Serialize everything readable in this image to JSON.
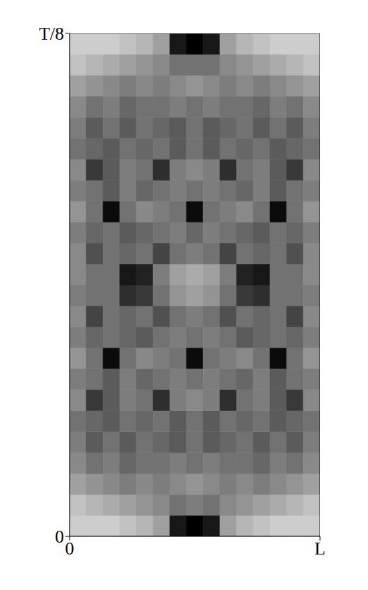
{
  "chart_data": {
    "type": "heatmap",
    "xlim": [
      0,
      1
    ],
    "xticks": [
      {
        "value": 0,
        "label": "0"
      },
      {
        "value": 1,
        "label": "L"
      }
    ],
    "ylim": [
      0,
      0.125
    ],
    "yticks": [
      {
        "value": 0,
        "label": "0"
      },
      {
        "value": 0.125,
        "label": "T/8"
      }
    ],
    "zlim": [
      0,
      1
    ],
    "x": [
      0.033,
      0.1,
      0.167,
      0.233,
      0.3,
      0.367,
      0.433,
      0.5,
      0.567,
      0.633,
      0.7,
      0.767,
      0.833,
      0.9,
      0.967
    ],
    "y": [
      0.0026,
      0.0078,
      0.013,
      0.0182,
      0.0234,
      0.0286,
      0.0339,
      0.0391,
      0.0443,
      0.0495,
      0.0547,
      0.0599,
      0.0651,
      0.0703,
      0.0755,
      0.0807,
      0.0859,
      0.0911,
      0.0964,
      0.1016,
      0.1068,
      0.112,
      0.1172,
      0.1224
    ],
    "values": [
      [
        0.1,
        0.1,
        0.1,
        0.15,
        0.2,
        0.3,
        0.9,
        1,
        0.9,
        0.3,
        0.2,
        0.15,
        0.1,
        0.1,
        0.1
      ],
      [
        0.15,
        0.2,
        0.25,
        0.3,
        0.35,
        0.4,
        0.5,
        0.45,
        0.5,
        0.4,
        0.35,
        0.3,
        0.25,
        0.2,
        0.15
      ],
      [
        0.3,
        0.35,
        0.4,
        0.45,
        0.4,
        0.45,
        0.4,
        0.35,
        0.4,
        0.45,
        0.4,
        0.45,
        0.4,
        0.35,
        0.3
      ],
      [
        0.4,
        0.5,
        0.45,
        0.55,
        0.5,
        0.5,
        0.45,
        0.5,
        0.45,
        0.5,
        0.5,
        0.55,
        0.45,
        0.5,
        0.4
      ],
      [
        0.45,
        0.6,
        0.5,
        0.6,
        0.5,
        0.55,
        0.6,
        0.5,
        0.6,
        0.55,
        0.5,
        0.6,
        0.5,
        0.6,
        0.45
      ],
      [
        0.5,
        0.55,
        0.6,
        0.5,
        0.55,
        0.5,
        0.6,
        0.5,
        0.6,
        0.5,
        0.55,
        0.5,
        0.6,
        0.55,
        0.5
      ],
      [
        0.4,
        0.75,
        0.6,
        0.45,
        0.5,
        0.8,
        0.45,
        0.4,
        0.45,
        0.8,
        0.5,
        0.45,
        0.6,
        0.75,
        0.4
      ],
      [
        0.45,
        0.5,
        0.6,
        0.45,
        0.55,
        0.5,
        0.45,
        0.5,
        0.45,
        0.5,
        0.55,
        0.45,
        0.6,
        0.5,
        0.45
      ],
      [
        0.35,
        0.5,
        0.95,
        0.5,
        0.4,
        0.45,
        0.5,
        0.95,
        0.5,
        0.45,
        0.4,
        0.5,
        0.95,
        0.5,
        0.35
      ],
      [
        0.45,
        0.55,
        0.5,
        0.55,
        0.6,
        0.5,
        0.45,
        0.5,
        0.45,
        0.5,
        0.6,
        0.55,
        0.5,
        0.55,
        0.45
      ],
      [
        0.4,
        0.7,
        0.5,
        0.55,
        0.5,
        0.65,
        0.5,
        0.45,
        0.5,
        0.65,
        0.5,
        0.55,
        0.5,
        0.7,
        0.4
      ],
      [
        0.45,
        0.5,
        0.5,
        0.8,
        0.75,
        0.5,
        0.35,
        0.3,
        0.35,
        0.5,
        0.75,
        0.8,
        0.5,
        0.5,
        0.45
      ],
      [
        0.4,
        0.5,
        0.5,
        0.9,
        0.85,
        0.45,
        0.3,
        0.25,
        0.3,
        0.45,
        0.85,
        0.9,
        0.5,
        0.5,
        0.4
      ],
      [
        0.4,
        0.65,
        0.5,
        0.55,
        0.5,
        0.7,
        0.5,
        0.45,
        0.5,
        0.7,
        0.5,
        0.55,
        0.5,
        0.65,
        0.4
      ],
      [
        0.45,
        0.55,
        0.5,
        0.6,
        0.55,
        0.5,
        0.45,
        0.55,
        0.45,
        0.5,
        0.55,
        0.6,
        0.5,
        0.55,
        0.45
      ],
      [
        0.35,
        0.5,
        0.95,
        0.5,
        0.4,
        0.45,
        0.5,
        0.95,
        0.5,
        0.45,
        0.4,
        0.5,
        0.95,
        0.5,
        0.35
      ],
      [
        0.45,
        0.5,
        0.6,
        0.45,
        0.55,
        0.5,
        0.45,
        0.5,
        0.45,
        0.5,
        0.55,
        0.45,
        0.6,
        0.5,
        0.45
      ],
      [
        0.4,
        0.75,
        0.6,
        0.45,
        0.5,
        0.8,
        0.45,
        0.4,
        0.45,
        0.8,
        0.5,
        0.45,
        0.6,
        0.75,
        0.4
      ],
      [
        0.5,
        0.55,
        0.6,
        0.5,
        0.55,
        0.5,
        0.6,
        0.5,
        0.6,
        0.5,
        0.55,
        0.5,
        0.6,
        0.55,
        0.5
      ],
      [
        0.45,
        0.6,
        0.5,
        0.6,
        0.5,
        0.55,
        0.6,
        0.5,
        0.6,
        0.55,
        0.5,
        0.6,
        0.5,
        0.6,
        0.45
      ],
      [
        0.4,
        0.5,
        0.45,
        0.55,
        0.5,
        0.5,
        0.45,
        0.5,
        0.45,
        0.5,
        0.5,
        0.55,
        0.45,
        0.5,
        0.4
      ],
      [
        0.3,
        0.35,
        0.4,
        0.45,
        0.4,
        0.45,
        0.4,
        0.35,
        0.4,
        0.45,
        0.4,
        0.45,
        0.4,
        0.35,
        0.3
      ],
      [
        0.15,
        0.2,
        0.25,
        0.3,
        0.35,
        0.4,
        0.5,
        0.5,
        0.5,
        0.4,
        0.35,
        0.3,
        0.25,
        0.2,
        0.15
      ],
      [
        0.1,
        0.1,
        0.1,
        0.15,
        0.2,
        0.3,
        0.9,
        1,
        0.9,
        0.3,
        0.2,
        0.15,
        0.1,
        0.1,
        0.1
      ]
    ]
  }
}
